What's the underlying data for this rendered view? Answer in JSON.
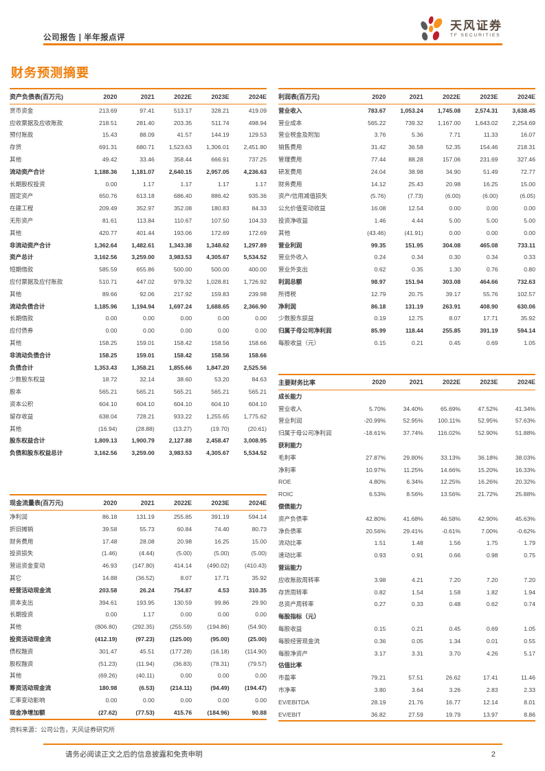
{
  "header": {
    "breadcrumb": "公司报告 | 半年报点评",
    "logo": {
      "brand": "天风证券",
      "sub": "TF SECURITIES"
    }
  },
  "page_title": "财务预测摘要",
  "colors": {
    "accent": "#EE7F0D",
    "logo_orange": "#F7941D",
    "logo_red": "#BE1E2D",
    "logo_gray": "#58595B"
  },
  "year_columns": [
    "2020",
    "2021",
    "2022E",
    "2023E",
    "2024E"
  ],
  "tables": {
    "balance_sheet": {
      "title": "资产负债表(百万元)",
      "rows": [
        {
          "label": "货币资金",
          "values": [
            "213.69",
            "97.41",
            "513.17",
            "328.21",
            "419.09"
          ]
        },
        {
          "label": "应收票据及应收账款",
          "values": [
            "218.51",
            "281.40",
            "203.35",
            "511.74",
            "498.94"
          ]
        },
        {
          "label": "预付账款",
          "values": [
            "15.43",
            "88.09",
            "41.57",
            "144.19",
            "129.53"
          ]
        },
        {
          "label": "存货",
          "values": [
            "691.31",
            "680.71",
            "1,523.63",
            "1,306.01",
            "2,451.80"
          ]
        },
        {
          "label": "其他",
          "values": [
            "49.42",
            "33.46",
            "358.44",
            "666.91",
            "737.25"
          ]
        },
        {
          "label": "流动资产合计",
          "bold": true,
          "values": [
            "1,188.36",
            "1,181.07",
            "2,640.15",
            "2,957.05",
            "4,236.63"
          ]
        },
        {
          "label": "长期股权投资",
          "values": [
            "0.00",
            "1.17",
            "1.17",
            "1.17",
            "1.17"
          ]
        },
        {
          "label": "固定资产",
          "values": [
            "650.76",
            "613.18",
            "686.40",
            "886.42",
            "935.36"
          ]
        },
        {
          "label": "在建工程",
          "values": [
            "209.49",
            "352.97",
            "352.08",
            "180.83",
            "84.33"
          ]
        },
        {
          "label": "无形资产",
          "values": [
            "81.61",
            "113.84",
            "110.67",
            "107.50",
            "104.33"
          ]
        },
        {
          "label": "其他",
          "values": [
            "420.77",
            "401.44",
            "193.06",
            "172.69",
            "172.69"
          ]
        },
        {
          "label": "非流动资产合计",
          "bold": true,
          "values": [
            "1,362.64",
            "1,482.61",
            "1,343.38",
            "1,348.62",
            "1,297.89"
          ]
        },
        {
          "label": "资产总计",
          "bold": true,
          "values": [
            "3,162.56",
            "3,259.00",
            "3,983.53",
            "4,305.67",
            "5,534.52"
          ]
        },
        {
          "label": "短期借款",
          "values": [
            "585.59",
            "655.86",
            "500.00",
            "500.00",
            "400.00"
          ]
        },
        {
          "label": "应付票据及应付账款",
          "values": [
            "510.71",
            "447.02",
            "979.32",
            "1,028.81",
            "1,726.92"
          ]
        },
        {
          "label": "其他",
          "values": [
            "89.66",
            "92.06",
            "217.92",
            "159.83",
            "239.98"
          ]
        },
        {
          "label": "流动负债合计",
          "bold": true,
          "values": [
            "1,185.96",
            "1,194.94",
            "1,697.24",
            "1,688.65",
            "2,366.90"
          ]
        },
        {
          "label": "长期借款",
          "values": [
            "0.00",
            "0.00",
            "0.00",
            "0.00",
            "0.00"
          ]
        },
        {
          "label": "应付债券",
          "values": [
            "0.00",
            "0.00",
            "0.00",
            "0.00",
            "0.00"
          ]
        },
        {
          "label": "其他",
          "values": [
            "158.25",
            "159.01",
            "158.42",
            "158.56",
            "158.66"
          ]
        },
        {
          "label": "非流动负债合计",
          "bold": true,
          "values": [
            "158.25",
            "159.01",
            "158.42",
            "158.56",
            "158.66"
          ]
        },
        {
          "label": "负债合计",
          "bold": true,
          "values": [
            "1,353.43",
            "1,358.21",
            "1,855.66",
            "1,847.20",
            "2,525.56"
          ]
        },
        {
          "label": "少数股东权益",
          "values": [
            "18.72",
            "32.14",
            "38.60",
            "53.20",
            "84.63"
          ]
        },
        {
          "label": "股本",
          "values": [
            "565.21",
            "565.21",
            "565.21",
            "565.21",
            "565.21"
          ]
        },
        {
          "label": "资本公积",
          "values": [
            "604.10",
            "604.10",
            "604.10",
            "604.10",
            "604.10"
          ]
        },
        {
          "label": "留存收益",
          "values": [
            "638.04",
            "728.21",
            "933.22",
            "1,255.65",
            "1,775.62"
          ]
        },
        {
          "label": "其他",
          "values": [
            "(16.94)",
            "(28.88)",
            "(13.27)",
            "(19.70)",
            "(20.61)"
          ]
        },
        {
          "label": "股东权益合计",
          "bold": true,
          "values": [
            "1,809.13",
            "1,900.79",
            "2,127.88",
            "2,458.47",
            "3,008.95"
          ]
        },
        {
          "label": "负债和股东权益总计",
          "bold": true,
          "values": [
            "3,162.56",
            "3,259.00",
            "3,983.53",
            "4,305.67",
            "5,534.52"
          ]
        }
      ]
    },
    "cash_flow": {
      "title": "现金流量表(百万元)",
      "rows": [
        {
          "label": "净利润",
          "values": [
            "86.18",
            "131.19",
            "255.85",
            "391.19",
            "594.14"
          ]
        },
        {
          "label": "折旧摊销",
          "values": [
            "39.58",
            "55.73",
            "60.84",
            "74.40",
            "80.73"
          ]
        },
        {
          "label": "财务费用",
          "values": [
            "17.48",
            "28.08",
            "20.98",
            "16.25",
            "15.00"
          ]
        },
        {
          "label": "投资损失",
          "values": [
            "(1.46)",
            "(4.44)",
            "(5.00)",
            "(5.00)",
            "(5.00)"
          ]
        },
        {
          "label": "营运资金变动",
          "values": [
            "46.93",
            "(147.80)",
            "414.14",
            "(490.02)",
            "(410.43)"
          ]
        },
        {
          "label": "其它",
          "values": [
            "14.88",
            "(36.52)",
            "8.07",
            "17.71",
            "35.92"
          ]
        },
        {
          "label": "经营活动现金流",
          "bold": true,
          "values": [
            "203.58",
            "26.24",
            "754.87",
            "4.53",
            "310.35"
          ]
        },
        {
          "label": "资本支出",
          "values": [
            "394.61",
            "193.95",
            "130.59",
            "99.86",
            "29.90"
          ]
        },
        {
          "label": "长期投资",
          "values": [
            "0.00",
            "1.17",
            "0.00",
            "0.00",
            "0.00"
          ]
        },
        {
          "label": "其他",
          "values": [
            "(806.80)",
            "(292.35)",
            "(255.59)",
            "(194.86)",
            "(54.90)"
          ]
        },
        {
          "label": "投资活动现金流",
          "bold": true,
          "values": [
            "(412.19)",
            "(97.23)",
            "(125.00)",
            "(95.00)",
            "(25.00)"
          ]
        },
        {
          "label": "债权融资",
          "values": [
            "301.47",
            "45.51",
            "(177.28)",
            "(16.18)",
            "(114.90)"
          ]
        },
        {
          "label": "股权融资",
          "values": [
            "(51.23)",
            "(11.94)",
            "(36.83)",
            "(78.31)",
            "(79.57)"
          ]
        },
        {
          "label": "其他",
          "values": [
            "(69.26)",
            "(40.11)",
            "0.00",
            "0.00",
            "0.00"
          ]
        },
        {
          "label": "筹资活动现金流",
          "bold": true,
          "values": [
            "180.98",
            "(6.53)",
            "(214.11)",
            "(94.49)",
            "(194.47)"
          ]
        },
        {
          "label": "汇率变动影响",
          "values": [
            "0.00",
            "0.00",
            "0.00",
            "0.00",
            "0.00"
          ]
        },
        {
          "label": "现金净增加额",
          "bold": true,
          "values": [
            "(27.62)",
            "(77.53)",
            "415.76",
            "(184.96)",
            "90.88"
          ]
        }
      ]
    },
    "income": {
      "title": "利润表(百万元)",
      "rows": [
        {
          "label": "营业收入",
          "bold": true,
          "values": [
            "783.67",
            "1,053.24",
            "1,745.08",
            "2,574.31",
            "3,638.45"
          ]
        },
        {
          "label": "营业成本",
          "values": [
            "565.22",
            "739.32",
            "1,167.00",
            "1,643.02",
            "2,254.69"
          ]
        },
        {
          "label": "营业税金及附加",
          "values": [
            "3.76",
            "5.36",
            "7.71",
            "11.33",
            "16.07"
          ]
        },
        {
          "label": "销售费用",
          "values": [
            "31.42",
            "36.58",
            "52.35",
            "154.46",
            "218.31"
          ]
        },
        {
          "label": "管理费用",
          "values": [
            "77.44",
            "88.28",
            "157.06",
            "231.69",
            "327.46"
          ]
        },
        {
          "label": "研发费用",
          "values": [
            "24.04",
            "38.98",
            "34.90",
            "51.49",
            "72.77"
          ]
        },
        {
          "label": "财务费用",
          "values": [
            "14.12",
            "25.43",
            "20.98",
            "16.25",
            "15.00"
          ]
        },
        {
          "label": "资产/信用减值损失",
          "values": [
            "(5.76)",
            "(7.73)",
            "(6.00)",
            "(6.00)",
            "(6.05)"
          ]
        },
        {
          "label": "公允价值变动收益",
          "values": [
            "16.08",
            "12.54",
            "0.00",
            "0.00",
            "0.00"
          ]
        },
        {
          "label": "投资净收益",
          "values": [
            "1.46",
            "4.44",
            "5.00",
            "5.00",
            "5.00"
          ]
        },
        {
          "label": "其他",
          "values": [
            "(43.46)",
            "(41.91)",
            "0.00",
            "0.00",
            "0.00"
          ]
        },
        {
          "label": "营业利润",
          "bold": true,
          "values": [
            "99.35",
            "151.95",
            "304.08",
            "465.08",
            "733.11"
          ]
        },
        {
          "label": "营业外收入",
          "values": [
            "0.24",
            "0.34",
            "0.30",
            "0.34",
            "0.33"
          ]
        },
        {
          "label": "营业外支出",
          "values": [
            "0.62",
            "0.35",
            "1.30",
            "0.76",
            "0.80"
          ]
        },
        {
          "label": "利润总额",
          "bold": true,
          "values": [
            "98.97",
            "151.94",
            "303.08",
            "464.66",
            "732.63"
          ]
        },
        {
          "label": "所得税",
          "values": [
            "12.79",
            "20.75",
            "39.17",
            "55.76",
            "102.57"
          ]
        },
        {
          "label": "净利润",
          "bold": true,
          "values": [
            "86.18",
            "131.19",
            "263.91",
            "408.90",
            "630.06"
          ]
        },
        {
          "label": "少数股东损益",
          "values": [
            "0.19",
            "12.75",
            "8.07",
            "17.71",
            "35.92"
          ]
        },
        {
          "label": "归属于母公司净利润",
          "bold": true,
          "values": [
            "85.99",
            "118.44",
            "255.85",
            "391.19",
            "594.14"
          ]
        },
        {
          "label": "每股收益（元）",
          "values": [
            "0.15",
            "0.21",
            "0.45",
            "0.69",
            "1.05"
          ]
        }
      ]
    },
    "ratios": {
      "title": "主要财务比率",
      "rows": [
        {
          "label": "成长能力",
          "section": true,
          "values": [
            "",
            "",
            "",
            "",
            ""
          ]
        },
        {
          "label": "营业收入",
          "values": [
            "5.70%",
            "34.40%",
            "65.69%",
            "47.52%",
            "41.34%"
          ]
        },
        {
          "label": "营业利润",
          "values": [
            "-20.99%",
            "52.95%",
            "100.11%",
            "52.95%",
            "57.63%"
          ]
        },
        {
          "label": "归属于母公司净利润",
          "values": [
            "-18.61%",
            "37.74%",
            "116.02%",
            "52.90%",
            "51.88%"
          ]
        },
        {
          "label": "获利能力",
          "section": true,
          "values": [
            "",
            "",
            "",
            "",
            ""
          ]
        },
        {
          "label": "毛利率",
          "values": [
            "27.87%",
            "29.80%",
            "33.13%",
            "36.18%",
            "38.03%"
          ]
        },
        {
          "label": "净利率",
          "values": [
            "10.97%",
            "11.25%",
            "14.66%",
            "15.20%",
            "16.33%"
          ]
        },
        {
          "label": "ROE",
          "values": [
            "4.80%",
            "6.34%",
            "12.25%",
            "16.26%",
            "20.32%"
          ]
        },
        {
          "label": "ROIC",
          "values": [
            "6.53%",
            "8.56%",
            "13.56%",
            "21.72%",
            "25.88%"
          ]
        },
        {
          "label": "偿债能力",
          "section": true,
          "values": [
            "",
            "",
            "",
            "",
            ""
          ]
        },
        {
          "label": "资产负债率",
          "values": [
            "42.80%",
            "41.68%",
            "46.58%",
            "42.90%",
            "45.63%"
          ]
        },
        {
          "label": "净负债率",
          "values": [
            "20.56%",
            "29.41%",
            "-0.61%",
            "7.00%",
            "-0.62%"
          ]
        },
        {
          "label": "流动比率",
          "values": [
            "1.51",
            "1.48",
            "1.56",
            "1.75",
            "1.79"
          ]
        },
        {
          "label": "速动比率",
          "values": [
            "0.93",
            "0.91",
            "0.66",
            "0.98",
            "0.75"
          ]
        },
        {
          "label": "营运能力",
          "section": true,
          "values": [
            "",
            "",
            "",
            "",
            ""
          ]
        },
        {
          "label": "应收账款周转率",
          "values": [
            "3.98",
            "4.21",
            "7.20",
            "7.20",
            "7.20"
          ]
        },
        {
          "label": "存货周转率",
          "values": [
            "0.82",
            "1.54",
            "1.58",
            "1.82",
            "1.94"
          ]
        },
        {
          "label": "总资产周转率",
          "values": [
            "0.27",
            "0.33",
            "0.48",
            "0.62",
            "0.74"
          ]
        },
        {
          "label": "每股指标（元）",
          "section": true,
          "values": [
            "",
            "",
            "",
            "",
            ""
          ]
        },
        {
          "label": "每股收益",
          "values": [
            "0.15",
            "0.21",
            "0.45",
            "0.69",
            "1.05"
          ]
        },
        {
          "label": "每股经营现金流",
          "values": [
            "0.36",
            "0.05",
            "1.34",
            "0.01",
            "0.55"
          ]
        },
        {
          "label": "每股净资产",
          "values": [
            "3.17",
            "3.31",
            "3.70",
            "4.26",
            "5.17"
          ]
        },
        {
          "label": "估值比率",
          "section": true,
          "values": [
            "",
            "",
            "",
            "",
            ""
          ]
        },
        {
          "label": "市盈率",
          "values": [
            "79.21",
            "57.51",
            "26.62",
            "17.41",
            "11.46"
          ]
        },
        {
          "label": "市净率",
          "values": [
            "3.80",
            "3.64",
            "3.26",
            "2.83",
            "2.33"
          ]
        },
        {
          "label": "EV/EBITDA",
          "values": [
            "28.19",
            "21.76",
            "16.77",
            "12.14",
            "8.01"
          ]
        },
        {
          "label": "EV/EBIT",
          "values": [
            "36.82",
            "27.59",
            "19.79",
            "13.97",
            "8.86"
          ]
        }
      ]
    }
  },
  "source_note": "资料来源：公司公告，天风证券研究所",
  "footer": {
    "disclaimer": "请务必阅读正文之后的信息披露和免责申明",
    "page_number": "2"
  }
}
